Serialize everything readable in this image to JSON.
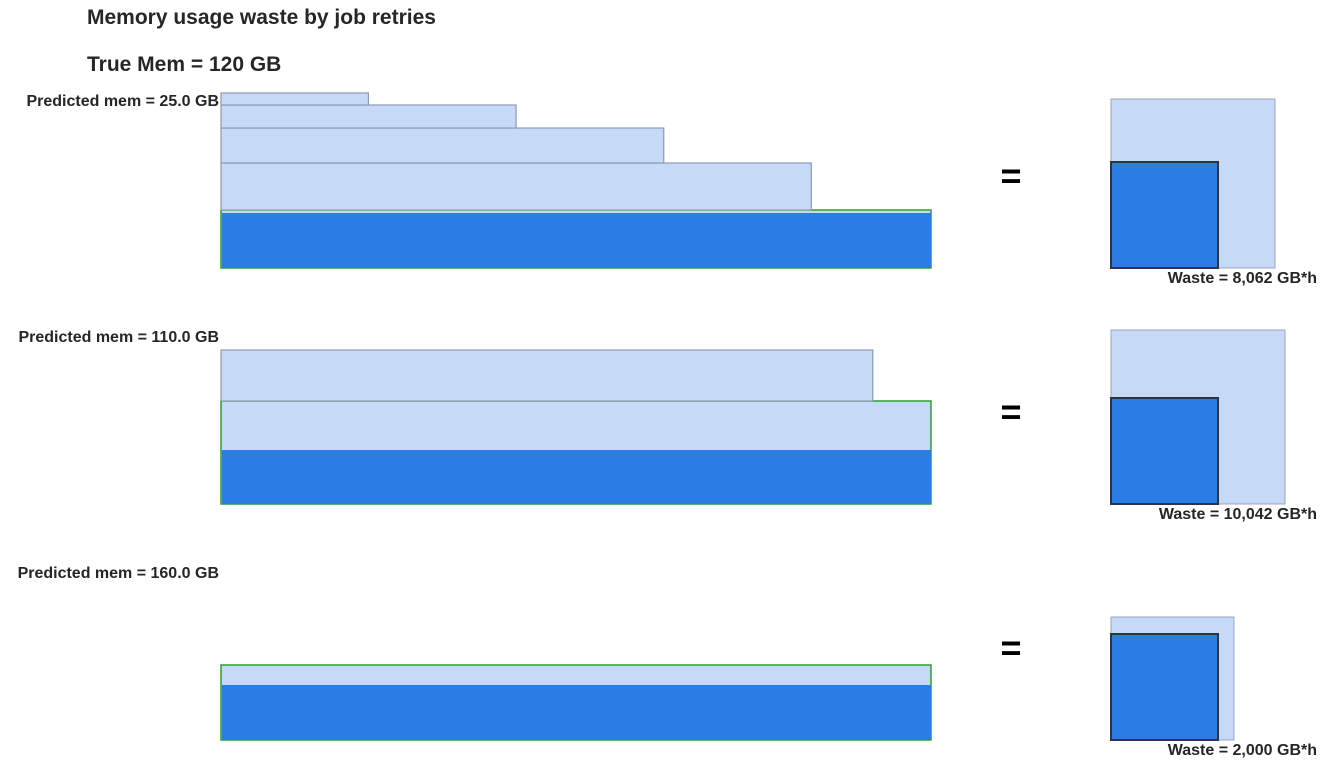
{
  "chart_data": {
    "type": "bar",
    "title": "Memory usage waste by job retries",
    "subtitle": "True Mem = 120 GB",
    "true_mem_gb": 120,
    "colors": {
      "predicted": "#c6daf7",
      "predicted_edge": "#8a9ab3",
      "true_mem": "#2b7de6",
      "final_edge": "#2aa02a",
      "waste_square_edge": "#2e3440"
    },
    "equals_sign": "=",
    "scenarios": [
      {
        "predicted_label": "Predicted mem = 25.0 GB",
        "predicted_mem_gb": 25.0,
        "attempts": [
          {
            "mem_gb": 25,
            "runtime": 0.2076
          },
          {
            "mem_gb": 50,
            "runtime": 0.4156
          },
          {
            "mem_gb": 100,
            "runtime": 0.6236
          },
          {
            "mem_gb": 200,
            "runtime": 0.8314
          },
          {
            "mem_gb": 400,
            "runtime": 1.0,
            "final": true,
            "true_mem_gb": 120
          }
        ],
        "waste_label": "Waste = 8,062 GB*h",
        "waste_gbh": 8062
      },
      {
        "predicted_label": "Predicted mem = 110.0 GB",
        "predicted_mem_gb": 110.0,
        "attempts": [
          {
            "mem_gb": 110,
            "runtime": 0.918
          },
          {
            "mem_gb": 220,
            "runtime": 1.0,
            "final": true,
            "true_mem_gb": 120
          }
        ],
        "waste_label": "Waste = 10,042 GB*h",
        "waste_gbh": 10042
      },
      {
        "predicted_label": "Predicted mem = 160.0 GB",
        "predicted_mem_gb": 160.0,
        "attempts": [
          {
            "mem_gb": 160,
            "runtime": 1.0,
            "final": true,
            "true_mem_gb": 120
          }
        ],
        "waste_label": "Waste = 2,000 GB*h",
        "waste_gbh": 2000
      }
    ]
  }
}
